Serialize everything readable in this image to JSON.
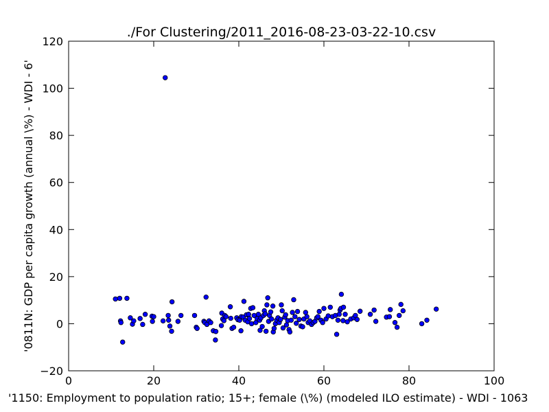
{
  "chart_data": {
    "type": "scatter",
    "title": "./For Clustering/2011_2016-08-23-03-22-10.csv",
    "xlabel": "'1150: Employment to population ratio; 15+; female (\\%)  (modeled ILO estimate) - WDI - 1063",
    "ylabel": "'0811N: GDP per capita growth  (annual \\%) - WDI - 6'",
    "xlim": [
      0,
      100
    ],
    "ylim": [
      -20,
      120
    ],
    "xticks": [
      "0",
      "20",
      "40",
      "60",
      "80",
      "100"
    ],
    "yticks": [
      "−20",
      "0",
      "20",
      "40",
      "60",
      "80",
      "100",
      "120"
    ],
    "grid": false,
    "marker_color": "#0000ff",
    "marker_edge": "#000000",
    "points": [
      [
        22.7,
        104.5
      ],
      [
        11.0,
        10.5
      ],
      [
        12.0,
        10.8
      ],
      [
        13.7,
        10.8
      ],
      [
        12.2,
        1.2
      ],
      [
        12.3,
        0.5
      ],
      [
        12.7,
        -7.8
      ],
      [
        14.5,
        2.5
      ],
      [
        15.0,
        -0.2
      ],
      [
        15.3,
        1.2
      ],
      [
        16.8,
        2.2
      ],
      [
        17.4,
        -0.3
      ],
      [
        18.0,
        4.0
      ],
      [
        19.6,
        3.2
      ],
      [
        19.7,
        1.0
      ],
      [
        20.0,
        3.0
      ],
      [
        22.2,
        1.2
      ],
      [
        23.4,
        3.5
      ],
      [
        23.5,
        1.5
      ],
      [
        23.8,
        -1.0
      ],
      [
        24.2,
        -3.2
      ],
      [
        24.3,
        9.3
      ],
      [
        25.7,
        1.0
      ],
      [
        26.4,
        3.5
      ],
      [
        29.6,
        3.5
      ],
      [
        30.0,
        -1.5
      ],
      [
        30.2,
        -2.0
      ],
      [
        31.8,
        1.0
      ],
      [
        32.0,
        0.5
      ],
      [
        32.3,
        11.3
      ],
      [
        32.5,
        -0.3
      ],
      [
        33.0,
        1.2
      ],
      [
        33.4,
        0.5
      ],
      [
        34.0,
        -3.0
      ],
      [
        34.6,
        -3.3
      ],
      [
        34.5,
        -6.9
      ],
      [
        35.9,
        -0.8
      ],
      [
        36.0,
        4.5
      ],
      [
        36.2,
        2.0
      ],
      [
        36.5,
        1.3
      ],
      [
        36.7,
        3.5
      ],
      [
        37.0,
        3.0
      ],
      [
        38.0,
        7.2
      ],
      [
        38.1,
        2.3
      ],
      [
        38.4,
        -2.0
      ],
      [
        38.8,
        -1.5
      ],
      [
        39.5,
        2.5
      ],
      [
        39.8,
        1.7
      ],
      [
        40.2,
        1.5
      ],
      [
        40.5,
        -3.0
      ],
      [
        40.6,
        3.0
      ],
      [
        41.0,
        2.8
      ],
      [
        41.2,
        9.5
      ],
      [
        41.5,
        1.5
      ],
      [
        41.8,
        3.8
      ],
      [
        42.1,
        0.8
      ],
      [
        42.3,
        4.0
      ],
      [
        42.5,
        2.2
      ],
      [
        42.8,
        6.5
      ],
      [
        43.0,
        0.0
      ],
      [
        43.3,
        6.8
      ],
      [
        43.6,
        3.5
      ],
      [
        44.0,
        0.5
      ],
      [
        44.3,
        2.2
      ],
      [
        44.6,
        4.0
      ],
      [
        44.9,
        1.5
      ],
      [
        45.0,
        -2.8
      ],
      [
        45.2,
        2.5
      ],
      [
        45.5,
        -1.2
      ],
      [
        45.8,
        3.5
      ],
      [
        46.0,
        5.5
      ],
      [
        46.2,
        4.2
      ],
      [
        46.4,
        -3.2
      ],
      [
        46.6,
        8.0
      ],
      [
        46.8,
        11.0
      ],
      [
        47.0,
        1.0
      ],
      [
        47.2,
        3.5
      ],
      [
        47.5,
        5.0
      ],
      [
        47.7,
        2.0
      ],
      [
        48.0,
        7.5
      ],
      [
        48.1,
        -3.5
      ],
      [
        48.3,
        -2.0
      ],
      [
        48.6,
        0.0
      ],
      [
        48.9,
        1.5
      ],
      [
        49.2,
        2.5
      ],
      [
        49.5,
        0.5
      ],
      [
        49.8,
        1.8
      ],
      [
        50.0,
        8.0
      ],
      [
        50.2,
        5.5
      ],
      [
        50.4,
        -1.8
      ],
      [
        50.8,
        2.8
      ],
      [
        51.0,
        3.8
      ],
      [
        51.2,
        -0.5
      ],
      [
        51.5,
        1.3
      ],
      [
        51.8,
        -2.5
      ],
      [
        52.0,
        -3.5
      ],
      [
        52.3,
        1.5
      ],
      [
        52.6,
        4.8
      ],
      [
        52.9,
        10.2
      ],
      [
        53.2,
        3.0
      ],
      [
        53.5,
        0.2
      ],
      [
        53.8,
        5.2
      ],
      [
        54.2,
        1.8
      ],
      [
        54.6,
        -1.0
      ],
      [
        55.0,
        -1.3
      ],
      [
        55.3,
        2.0
      ],
      [
        55.7,
        4.8
      ],
      [
        56.0,
        3.0
      ],
      [
        56.3,
        0.5
      ],
      [
        56.7,
        1.2
      ],
      [
        57.1,
        -0.3
      ],
      [
        57.5,
        0.5
      ],
      [
        57.9,
        1.0
      ],
      [
        58.3,
        2.5
      ],
      [
        58.6,
        3.0
      ],
      [
        58.9,
        5.2
      ],
      [
        59.3,
        1.5
      ],
      [
        59.7,
        0.5
      ],
      [
        60.0,
        6.5
      ],
      [
        60.5,
        2.0
      ],
      [
        61.0,
        3.3
      ],
      [
        61.5,
        7.0
      ],
      [
        62.0,
        3.0
      ],
      [
        62.7,
        3.5
      ],
      [
        63.0,
        -4.5
      ],
      [
        63.3,
        1.5
      ],
      [
        63.6,
        4.0
      ],
      [
        63.8,
        5.8
      ],
      [
        64.0,
        6.5
      ],
      [
        64.1,
        12.5
      ],
      [
        64.5,
        1.3
      ],
      [
        64.6,
        7.0
      ],
      [
        65.0,
        4.0
      ],
      [
        65.5,
        0.8
      ],
      [
        66.3,
        2.0
      ],
      [
        67.0,
        2.5
      ],
      [
        67.4,
        3.5
      ],
      [
        67.8,
        1.8
      ],
      [
        68.5,
        5.3
      ],
      [
        70.9,
        4.0
      ],
      [
        71.8,
        5.8
      ],
      [
        72.2,
        1.0
      ],
      [
        74.7,
        2.8
      ],
      [
        75.4,
        3.0
      ],
      [
        75.6,
        6.0
      ],
      [
        76.7,
        0.5
      ],
      [
        77.2,
        -1.5
      ],
      [
        77.7,
        3.5
      ],
      [
        78.1,
        8.2
      ],
      [
        78.6,
        5.5
      ],
      [
        83.0,
        0.0
      ],
      [
        84.2,
        1.5
      ],
      [
        86.4,
        6.2
      ]
    ]
  }
}
